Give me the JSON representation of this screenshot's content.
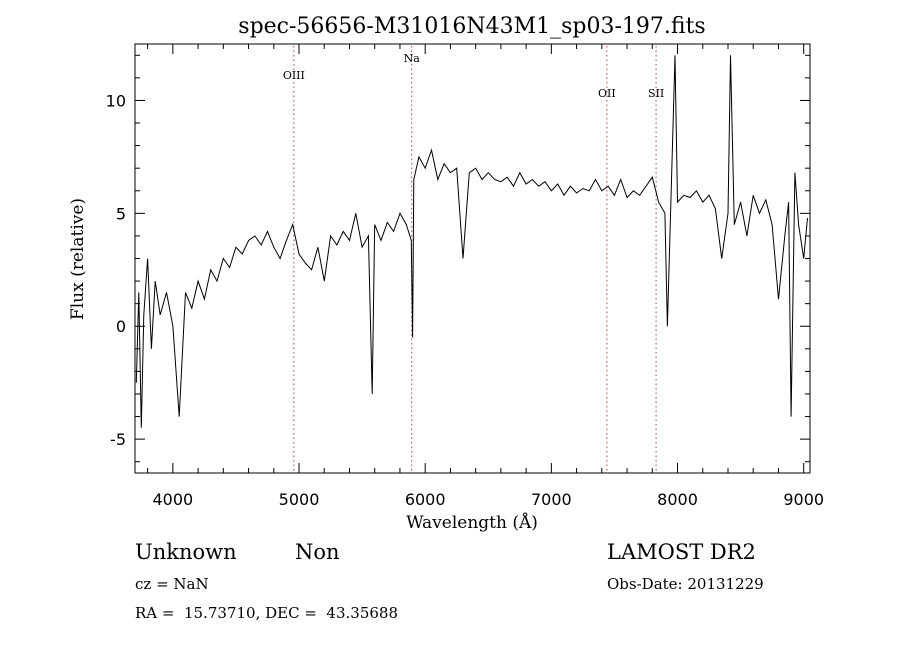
{
  "chart_data": {
    "type": "line",
    "title": "spec-56656-M31016N43M1_sp03-197.fits",
    "xlabel": "Wavelength (Å)",
    "ylabel": "Flux (relative)",
    "xlim": [
      3700,
      9050
    ],
    "ylim": [
      -6.5,
      12.5
    ],
    "xticks": [
      4000,
      5000,
      6000,
      7000,
      8000,
      9000
    ],
    "yticks": [
      -5,
      0,
      5,
      10
    ],
    "grid": false,
    "series": [
      {
        "x": [
          3710,
          3730,
          3750,
          3770,
          3800,
          3830,
          3860,
          3900,
          3950,
          4000,
          4050,
          4100,
          4150,
          4200,
          4250,
          4300,
          4350,
          4400,
          4450,
          4500,
          4550,
          4600,
          4650,
          4700,
          4750,
          4800,
          4850,
          4900,
          4950,
          5000,
          5050,
          5100,
          5150,
          5200,
          5250,
          5300,
          5350,
          5400,
          5450,
          5500,
          5550,
          5580,
          5600,
          5650,
          5700,
          5750,
          5800,
          5850,
          5890,
          5900,
          5910,
          5950,
          6000,
          6050,
          6100,
          6150,
          6200,
          6250,
          6300,
          6350,
          6400,
          6450,
          6500,
          6550,
          6600,
          6650,
          6700,
          6750,
          6800,
          6850,
          6900,
          6950,
          7000,
          7050,
          7100,
          7150,
          7200,
          7250,
          7300,
          7350,
          7400,
          7450,
          7500,
          7550,
          7600,
          7650,
          7700,
          7750,
          7800,
          7850,
          7900,
          7920,
          7950,
          7980,
          8000,
          8050,
          8100,
          8150,
          8200,
          8250,
          8300,
          8350,
          8400,
          8420,
          8450,
          8500,
          8550,
          8600,
          8650,
          8700,
          8750,
          8800,
          8850,
          8880,
          8900,
          8930,
          8960,
          9000,
          9030
        ],
        "y": [
          -2.5,
          1.5,
          -4.5,
          0.5,
          3.0,
          -1.0,
          2.0,
          0.5,
          1.5,
          0.0,
          -4.0,
          1.5,
          0.8,
          2.0,
          1.2,
          2.5,
          2.0,
          3.0,
          2.6,
          3.5,
          3.2,
          3.8,
          4.0,
          3.6,
          4.2,
          3.5,
          3.0,
          3.8,
          4.5,
          3.2,
          2.8,
          2.5,
          3.5,
          2.0,
          4.0,
          3.6,
          4.2,
          3.8,
          5.0,
          3.5,
          4.0,
          -3.0,
          4.5,
          3.8,
          4.6,
          4.2,
          5.0,
          4.5,
          3.8,
          -0.5,
          6.5,
          7.5,
          7.0,
          7.8,
          6.5,
          7.2,
          6.8,
          7.0,
          3.0,
          6.8,
          7.0,
          6.5,
          6.8,
          6.5,
          6.4,
          6.6,
          6.2,
          6.8,
          6.3,
          6.5,
          6.2,
          6.4,
          6.0,
          6.3,
          5.8,
          6.2,
          5.9,
          6.1,
          6.0,
          6.5,
          6.0,
          6.2,
          5.8,
          6.5,
          5.7,
          6.0,
          5.8,
          6.2,
          6.6,
          5.5,
          5.0,
          0.0,
          6.0,
          12.0,
          5.5,
          5.8,
          5.7,
          6.0,
          5.5,
          5.8,
          5.2,
          3.0,
          5.0,
          12.0,
          4.5,
          5.5,
          4.0,
          5.8,
          5.0,
          5.6,
          4.5,
          1.2,
          4.0,
          5.5,
          -4.0,
          6.8,
          4.5,
          3.0,
          4.8
        ]
      }
    ],
    "vlines": [
      {
        "x": 4959,
        "label": "OIII"
      },
      {
        "x": 5893,
        "label": "Na"
      },
      {
        "x": 7440,
        "label": "OII"
      },
      {
        "x": 7830,
        "label": "SII"
      }
    ]
  },
  "footer": {
    "object_class": "Unknown",
    "subclass": "Non",
    "survey": "LAMOST DR2",
    "cz": "cz = NaN",
    "obs_date": "Obs-Date: 20131229",
    "coords": "RA =  15.73710, DEC =  43.35688"
  }
}
